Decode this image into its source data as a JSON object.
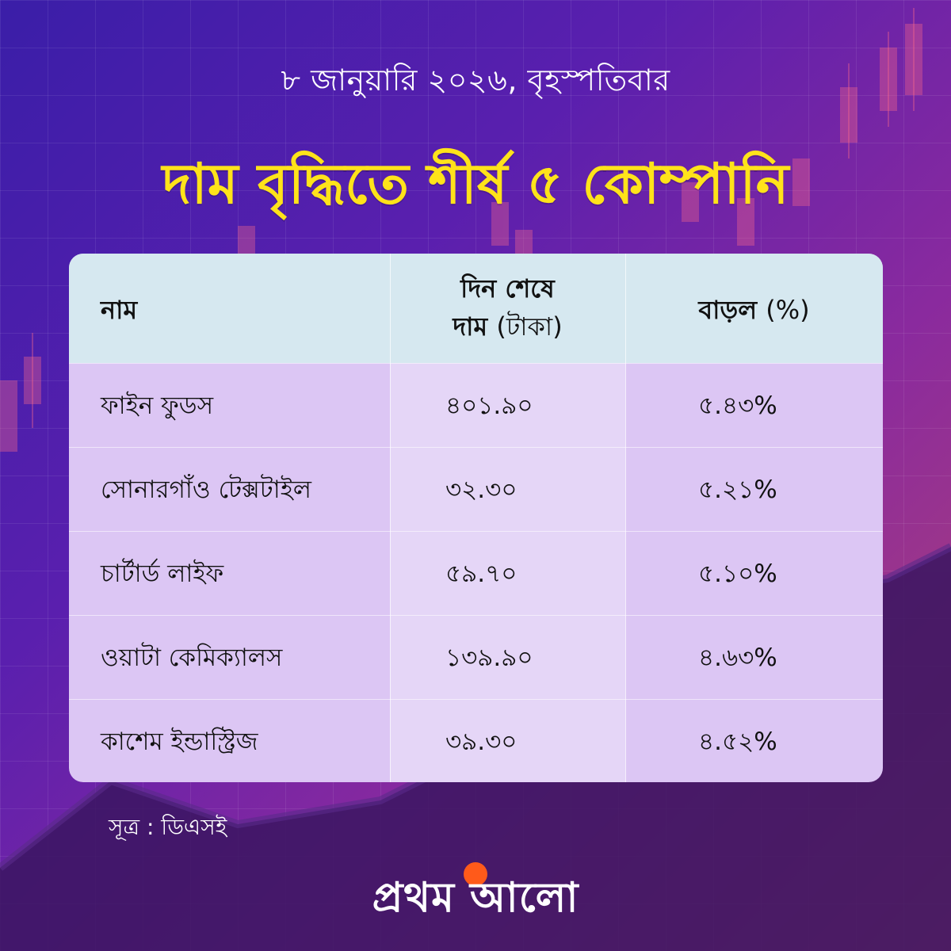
{
  "header": {
    "date": "৮ জানুয়ারি ২০২৬, বৃহস্পতিবার",
    "title": "দাম বৃদ্ধিতে শীর্ষ ৫ কোম্পানি"
  },
  "table": {
    "col_name": "নাম",
    "col_price_line1": "দিন শেষে",
    "col_price_line2_bold": "দাম",
    "col_price_line2_unit": "(টাকা)",
    "col_change_bold": "বাড়ল",
    "col_change_unit": "(%)",
    "rows": [
      {
        "name": "ফাইন ফুডস",
        "price": "৪০১.৯০",
        "change": "৫.৪৩%"
      },
      {
        "name": "সোনারগাঁও টেক্সটাইল",
        "price": "৩২.৩০",
        "change": "৫.২১%"
      },
      {
        "name": "চার্টার্ড লাইফ",
        "price": "৫৯.৭০",
        "change": "৫.১০%"
      },
      {
        "name": "ওয়াটা কেমিক্যালস",
        "price": "১৩৯.৯০",
        "change": "৪.৬৩%"
      },
      {
        "name": "কাশেম ইন্ডাস্ট্রিজ",
        "price": "৩৯.৩০",
        "change": "৪.৫২%"
      }
    ]
  },
  "source": "সূত্র : ডিএসই",
  "brand": "প্রথম আলো",
  "colors": {
    "title": "#ffe31a",
    "header_bg": "#d6e8f0",
    "table_bg": "#dcc6f4",
    "brand_sun": "#ff5a1a"
  }
}
